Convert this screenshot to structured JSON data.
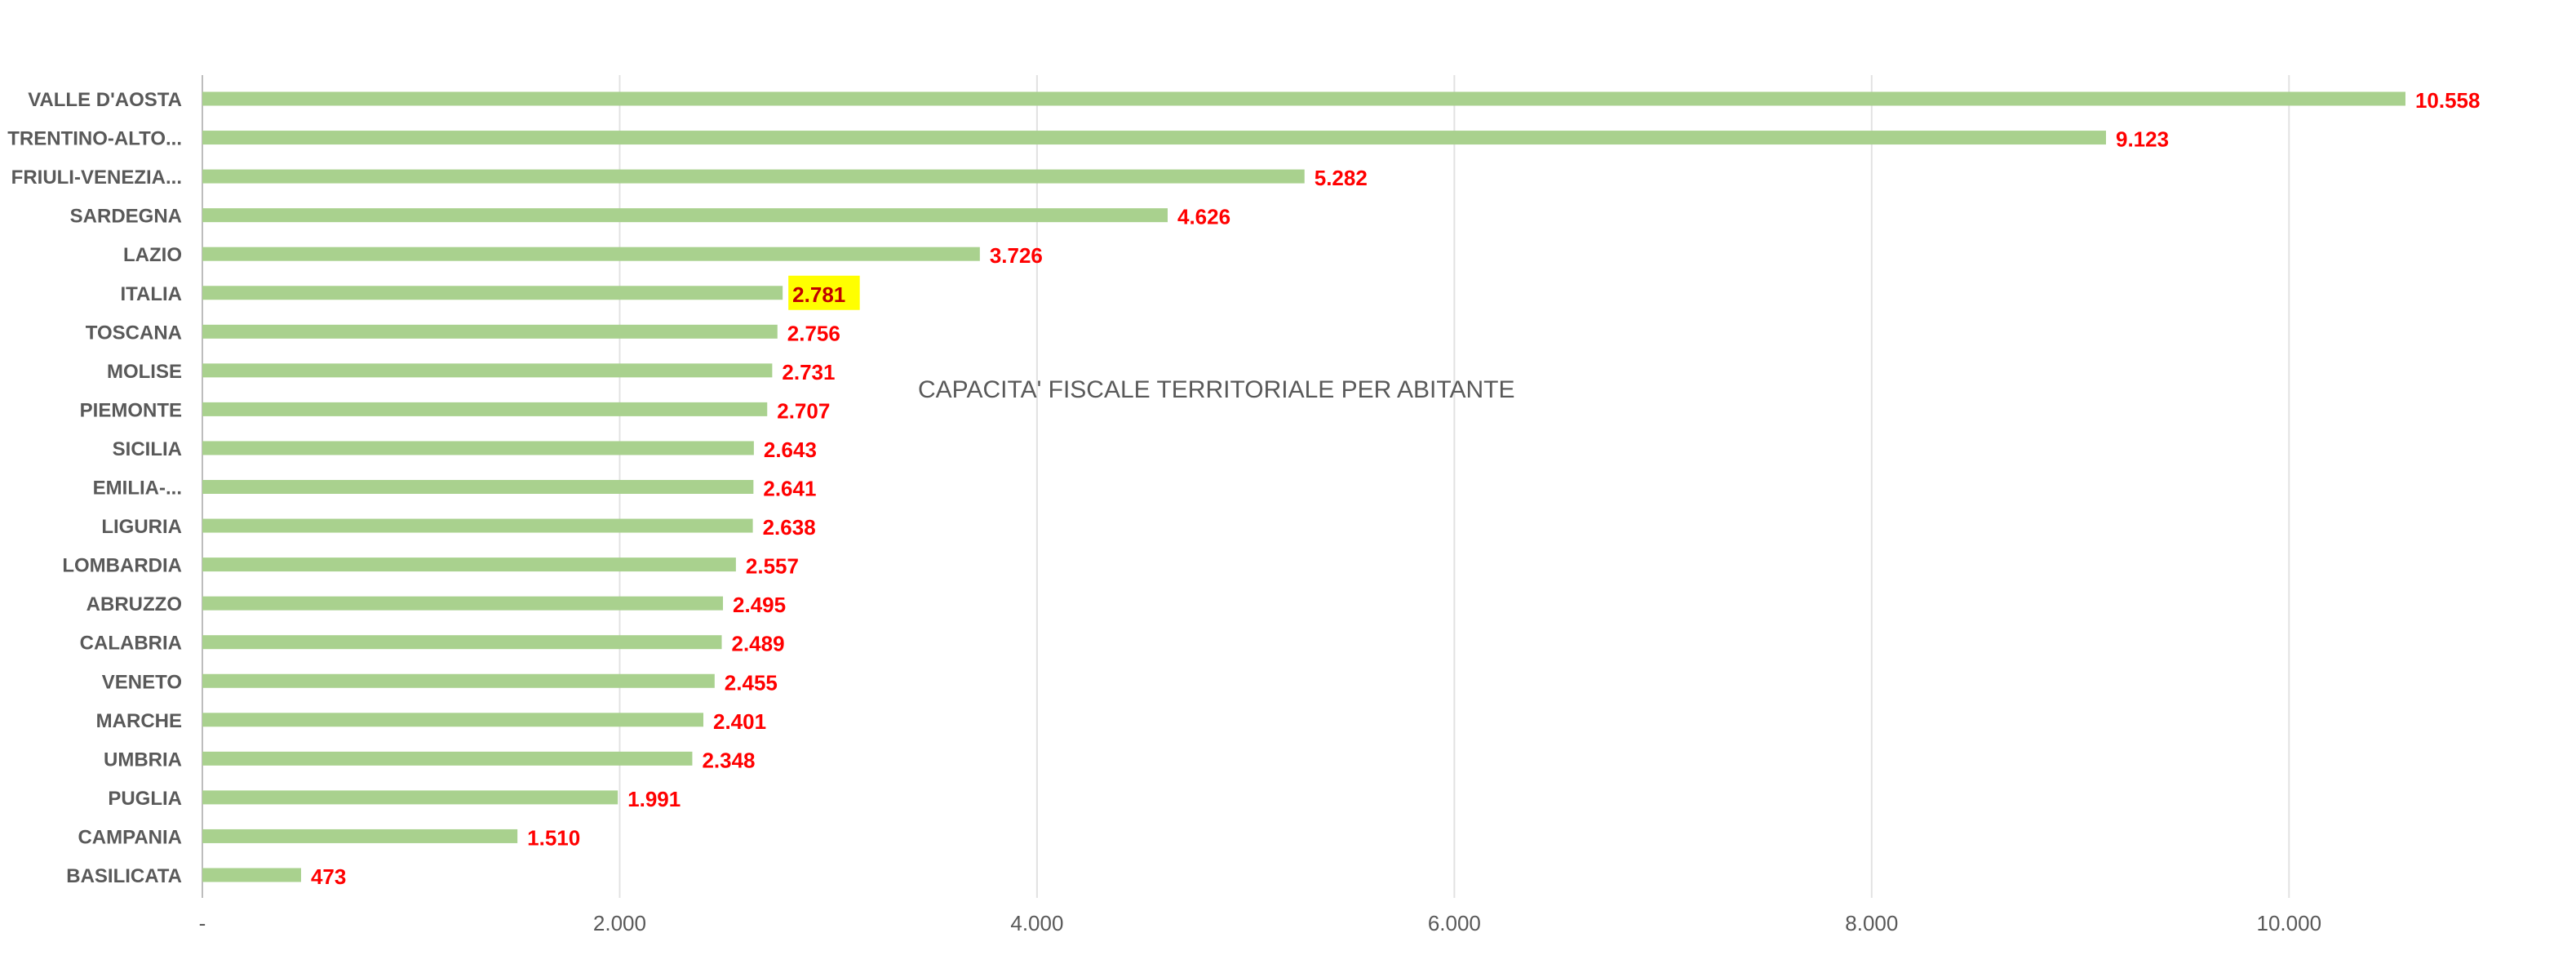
{
  "chart_data": {
    "type": "bar",
    "orientation": "horizontal",
    "title": "CAPACITA' FISCALE TERRITORIALE PER ABITANTE",
    "xlabel": "",
    "ylabel": "",
    "categories": [
      "VALLE D'AOSTA",
      "TRENTINO-ALTO...",
      "FRIULI-VENEZIA...",
      "SARDEGNA",
      "LAZIO",
      "ITALIA",
      "TOSCANA",
      "MOLISE",
      "PIEMONTE",
      "SICILIA",
      "EMILIA-...",
      "LIGURIA",
      "LOMBARDIA",
      "ABRUZZO",
      "CALABRIA",
      "VENETO",
      "MARCHE",
      "UMBRIA",
      "PUGLIA",
      "CAMPANIA",
      "BASILICATA"
    ],
    "values": [
      10558,
      9123,
      5282,
      4626,
      3726,
      2781,
      2756,
      2731,
      2707,
      2643,
      2641,
      2638,
      2557,
      2495,
      2489,
      2455,
      2401,
      2348,
      1991,
      1510,
      473
    ],
    "value_labels": [
      "10.558",
      "9.123",
      "5.282",
      "4.626",
      "3.726",
      "2.781",
      "2.756",
      "2.731",
      "2.707",
      "2.643",
      "2.641",
      "2.638",
      "2.557",
      "2.495",
      "2.489",
      "2.455",
      "2.401",
      "2.348",
      "1.991",
      "1.510",
      "473"
    ],
    "highlighted_category": "ITALIA",
    "xlim": [
      0,
      11000
    ],
    "x_ticks": [
      0,
      2000,
      4000,
      6000,
      8000,
      10000
    ],
    "x_tick_labels": [
      "-",
      "2.000",
      "4.000",
      "6.000",
      "8.000",
      "10.000"
    ],
    "grid": true,
    "legend": "none",
    "colors": {
      "bar": "#a9d18e",
      "value_label": "#ff0000",
      "highlight_background": "#ffff00",
      "highlight_text": "#c00000",
      "text": "#595959",
      "grid": "#e2e2e2"
    }
  }
}
